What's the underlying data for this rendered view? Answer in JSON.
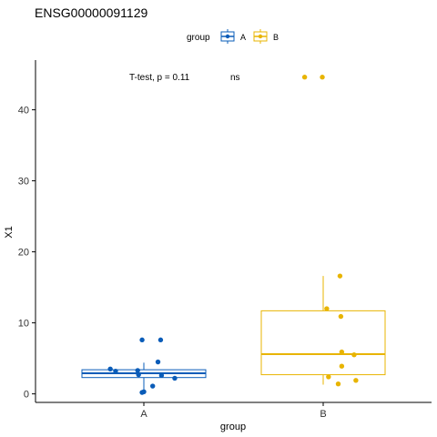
{
  "chart_data": {
    "type": "box",
    "title": "ENSG00000091129",
    "xlabel": "group",
    "ylabel": "X1",
    "legend": {
      "title": "group",
      "position": "top",
      "entries": [
        "A",
        "B"
      ]
    },
    "annotation": {
      "test": "T-test, p = 0.11",
      "signif": "ns"
    },
    "categories": [
      "A",
      "B"
    ],
    "ylim": [
      -1.2,
      47
    ],
    "yticks": [
      0,
      10,
      20,
      30,
      40
    ],
    "grid": false,
    "colors": {
      "A": "#0a5cb8",
      "B": "#e8b400"
    },
    "series": [
      {
        "name": "A",
        "box": {
          "min": 0.2,
          "q1": 2.3,
          "median": 2.9,
          "q3": 3.4,
          "max": 4.4
        },
        "points": [
          {
            "dx": -0.38,
            "y": 3.5
          },
          {
            "dx": -0.32,
            "y": 3.2
          },
          {
            "dx": -0.07,
            "y": 3.3
          },
          {
            "dx": -0.06,
            "y": 2.7
          },
          {
            "dx": -0.02,
            "y": 7.6
          },
          {
            "dx": 0.19,
            "y": 7.6
          },
          {
            "dx": 0.16,
            "y": 4.5
          },
          {
            "dx": 0.2,
            "y": 2.6
          },
          {
            "dx": 0.35,
            "y": 2.2
          },
          {
            "dx": 0.1,
            "y": 1.1
          },
          {
            "dx": -0.02,
            "y": 0.2
          },
          {
            "dx": 0.0,
            "y": 0.3
          }
        ]
      },
      {
        "name": "B",
        "box": {
          "min": 1.3,
          "q1": 2.7,
          "median": 5.6,
          "q3": 11.7,
          "max": 16.6
        },
        "points": [
          {
            "dx": -0.21,
            "y": 44.6
          },
          {
            "dx": -0.01,
            "y": 44.6
          },
          {
            "dx": 0.19,
            "y": 16.6
          },
          {
            "dx": 0.04,
            "y": 12.0
          },
          {
            "dx": 0.2,
            "y": 10.9
          },
          {
            "dx": 0.21,
            "y": 5.9
          },
          {
            "dx": 0.35,
            "y": 5.5
          },
          {
            "dx": 0.21,
            "y": 3.9
          },
          {
            "dx": 0.06,
            "y": 2.4
          },
          {
            "dx": 0.37,
            "y": 1.9
          },
          {
            "dx": 0.17,
            "y": 1.4
          }
        ]
      }
    ]
  }
}
